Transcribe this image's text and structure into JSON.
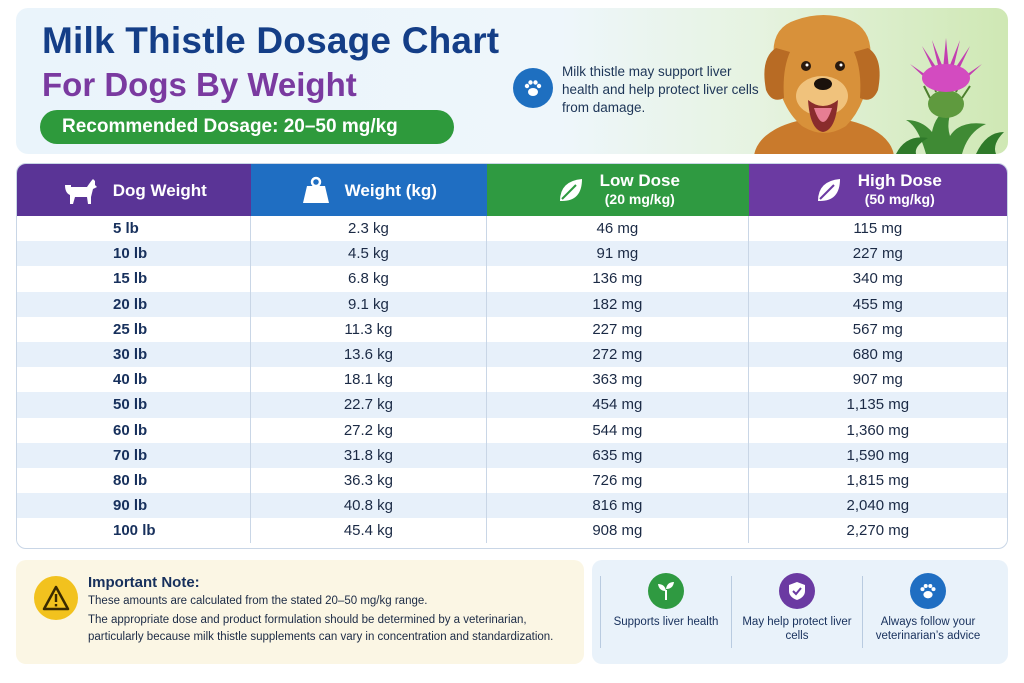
{
  "header": {
    "title_line1": "Milk Thistle Dosage Chart",
    "title_line2": "For Dogs By Weight",
    "recommended": "Recommended Dosage: 20–50 mg/kg",
    "info_text": "Milk thistle may support liver health and help protect liver cells from damage.",
    "icons": [
      "paw-icon"
    ]
  },
  "table": {
    "headers": [
      {
        "label": "Dog Weight",
        "sub": "",
        "icon": "dog-icon"
      },
      {
        "label": "Weight (kg)",
        "sub": "",
        "icon": "weight-icon"
      },
      {
        "label": "Low Dose",
        "sub": "(20 mg/kg)",
        "icon": "leaf-icon"
      },
      {
        "label": "High Dose",
        "sub": "(50 mg/kg)",
        "icon": "leaf-icon"
      }
    ],
    "rows": [
      [
        "5 lb",
        "2.3 kg",
        "46 mg",
        "115 mg"
      ],
      [
        "10 lb",
        "4.5 kg",
        "91 mg",
        "227 mg"
      ],
      [
        "15 lb",
        "6.8 kg",
        "136 mg",
        "340 mg"
      ],
      [
        "20 lb",
        "9.1 kg",
        "182 mg",
        "455 mg"
      ],
      [
        "25 lb",
        "11.3 kg",
        "227 mg",
        "567 mg"
      ],
      [
        "30 lb",
        "13.6 kg",
        "272 mg",
        "680 mg"
      ],
      [
        "40 lb",
        "18.1 kg",
        "363 mg",
        "907 mg"
      ],
      [
        "50 lb",
        "22.7 kg",
        "454 mg",
        "1,135 mg"
      ],
      [
        "60 lb",
        "27.2 kg",
        "544 mg",
        "1,360 mg"
      ],
      [
        "70 lb",
        "31.8 kg",
        "635 mg",
        "1,590 mg"
      ],
      [
        "80 lb",
        "36.3 kg",
        "726 mg",
        "1,815 mg"
      ],
      [
        "90 lb",
        "40.8 kg",
        "816 mg",
        "2,040 mg"
      ],
      [
        "100 lb",
        "45.4 kg",
        "908 mg",
        "2,270 mg"
      ]
    ]
  },
  "note": {
    "title": "Important Note:",
    "line1": "These amounts are calculated from the stated 20–50 mg/kg range.",
    "line2": "The appropriate dose and product formulation should be determined by a veterinarian,",
    "line3": "particularly because milk thistle supplements can vary in concentration and standardization.",
    "icon": "warning-icon"
  },
  "features": [
    {
      "text": "Supports liver health",
      "icon": "sprout-icon"
    },
    {
      "text": "May help protect liver cells",
      "icon": "shield-check-icon"
    },
    {
      "text": "Always follow your veterinarian’s advice",
      "icon": "paw-icon"
    }
  ],
  "colors": {
    "title_blue": "#143e87",
    "title_purple": "#7a3aa0",
    "green": "#2e9a3c",
    "blue": "#1f6ec2",
    "purple": "#6b3aa2",
    "row_alt": "#e7f0fa"
  }
}
